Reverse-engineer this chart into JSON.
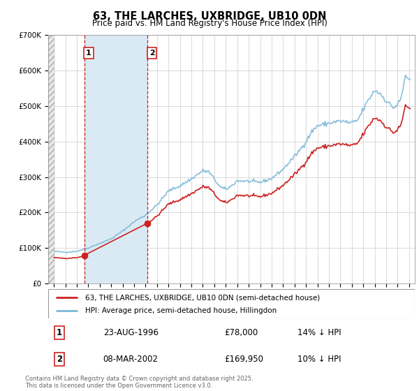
{
  "title": "63, THE LARCHES, UXBRIDGE, UB10 0DN",
  "subtitle": "Price paid vs. HM Land Registry's House Price Index (HPI)",
  "legend_line1": "63, THE LARCHES, UXBRIDGE, UB10 0DN (semi-detached house)",
  "legend_line2": "HPI: Average price, semi-detached house, Hillingdon",
  "footnote": "Contains HM Land Registry data © Crown copyright and database right 2025.\nThis data is licensed under the Open Government Licence v3.0.",
  "transaction1_label": "1",
  "transaction1_date": "23-AUG-1996",
  "transaction1_price": "£78,000",
  "transaction1_hpi": "14% ↓ HPI",
  "transaction2_label": "2",
  "transaction2_date": "08-MAR-2002",
  "transaction2_price": "£169,950",
  "transaction2_hpi": "10% ↓ HPI",
  "ylim": [
    0,
    700000
  ],
  "hpi_color": "#7ab8d9",
  "price_color": "#cc2222",
  "shaded_color": "#daeaf4",
  "hatch_color": "#c8c8c8",
  "marker1_x": 1996.64,
  "marker1_y": 78000,
  "marker2_x": 2002.18,
  "marker2_y": 169950,
  "vline1_x": 1996.64,
  "vline2_x": 2002.18,
  "xmin": 1994.0,
  "xmax": 2025.3
}
